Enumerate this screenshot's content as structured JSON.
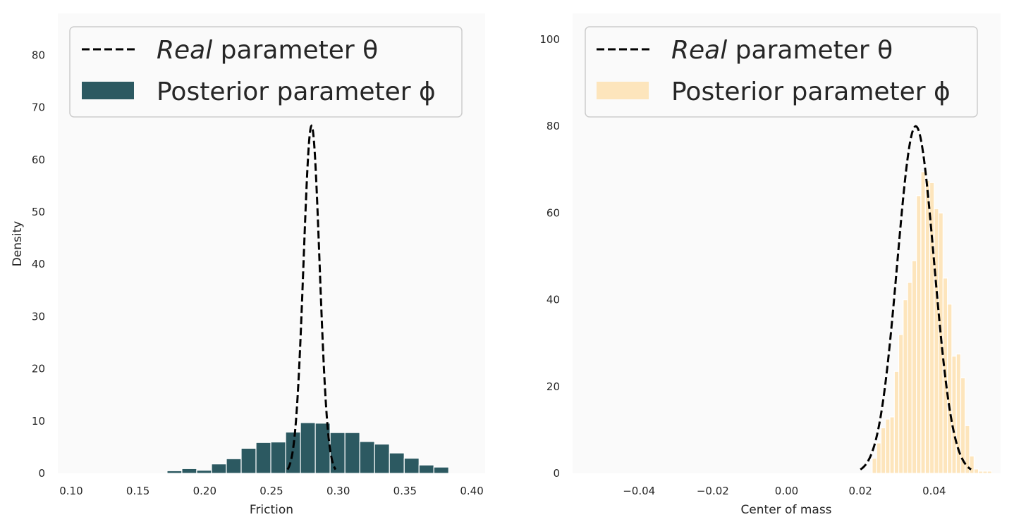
{
  "chart_data": [
    {
      "type": "bar",
      "xlabel": "Friction",
      "ylabel": "Density",
      "xlim": [
        0.09,
        0.41
      ],
      "ylim": [
        0,
        88
      ],
      "xticks": [
        "0.10",
        "0.15",
        "0.20",
        "0.25",
        "0.30",
        "0.35",
        "0.40"
      ],
      "xtick_values": [
        0.1,
        0.15,
        0.2,
        0.25,
        0.3,
        0.35,
        0.4
      ],
      "yticks": [
        "0",
        "10",
        "20",
        "30",
        "40",
        "50",
        "60",
        "70",
        "80"
      ],
      "ytick_values": [
        0,
        10,
        20,
        30,
        40,
        50,
        60,
        70,
        80
      ],
      "legend": {
        "position": "upper-left",
        "entries": [
          {
            "label_italic": "Real",
            "label_rest": " parameter θ",
            "style": "dashed-line",
            "color": "#000000"
          },
          {
            "label_italic": "",
            "label_rest": "Posterior parameter ϕ",
            "style": "patch",
            "color": "#2c5961"
          }
        ]
      },
      "histogram": {
        "color": "#2c5961",
        "bin_width": 0.0111,
        "bin_left_edges": [
          0.1718,
          0.1829,
          0.194,
          0.2051,
          0.2162,
          0.2273,
          0.2384,
          0.2495,
          0.2606,
          0.2717,
          0.2828,
          0.2939,
          0.305,
          0.3161,
          0.3272,
          0.3383,
          0.3494,
          0.3605,
          0.3716
        ],
        "densities": [
          0.5,
          0.9,
          0.6,
          1.8,
          2.8,
          4.8,
          5.9,
          6.0,
          7.9,
          9.7,
          9.6,
          7.8,
          7.8,
          6.1,
          5.6,
          3.9,
          2.9,
          1.6,
          1.2
        ]
      },
      "curve": {
        "label": "Real parameter θ",
        "style": "dashed",
        "color": "#000000",
        "x_range": [
          0.262,
          0.298
        ],
        "peak_x": 0.28,
        "peak_density": 66.5
      }
    },
    {
      "type": "bar",
      "xlabel": "Center of mass",
      "ylabel": "",
      "xlim": [
        -0.058,
        0.058
      ],
      "ylim": [
        0,
        106
      ],
      "xticks": [
        "−0.04",
        "−0.02",
        "0.00",
        "0.02",
        "0.04"
      ],
      "xtick_values": [
        -0.04,
        -0.02,
        0.0,
        0.02,
        0.04
      ],
      "yticks": [
        "0",
        "20",
        "40",
        "60",
        "80",
        "100"
      ],
      "ytick_values": [
        0,
        20,
        40,
        60,
        80,
        100
      ],
      "legend": {
        "position": "upper-left",
        "entries": [
          {
            "label_italic": "Real",
            "label_rest": " parameter θ",
            "style": "dashed-line",
            "color": "#000000"
          },
          {
            "label_italic": "",
            "label_rest": "Posterior parameter ϕ",
            "style": "patch",
            "color": "#fde5bc"
          }
        ]
      },
      "histogram": {
        "color": "#fde5bc",
        "bin_width": 0.0012,
        "bin_left_edges": [
          0.0232,
          0.0244,
          0.0256,
          0.0268,
          0.028,
          0.0292,
          0.0304,
          0.0316,
          0.0328,
          0.034,
          0.0352,
          0.0364,
          0.0376,
          0.0388,
          0.04,
          0.0412,
          0.0424,
          0.0436,
          0.0448,
          0.046,
          0.0472,
          0.0484,
          0.0496,
          0.0508,
          0.052,
          0.0532,
          0.0544
        ],
        "densities": [
          3.5,
          7.0,
          10.5,
          12.5,
          13.0,
          23.5,
          32.0,
          40.0,
          44.0,
          49.0,
          64.0,
          69.5,
          67.5,
          67.0,
          61.0,
          60.0,
          45.0,
          39.0,
          27.0,
          27.5,
          22.0,
          11.0,
          4.0,
          1.0,
          0.5,
          0.5,
          0.5
        ]
      },
      "curve": {
        "label": "Real parameter θ",
        "style": "dashed",
        "color": "#000000",
        "x_range": [
          0.02,
          0.05
        ],
        "peak_x": 0.035,
        "peak_density": 80
      }
    }
  ]
}
